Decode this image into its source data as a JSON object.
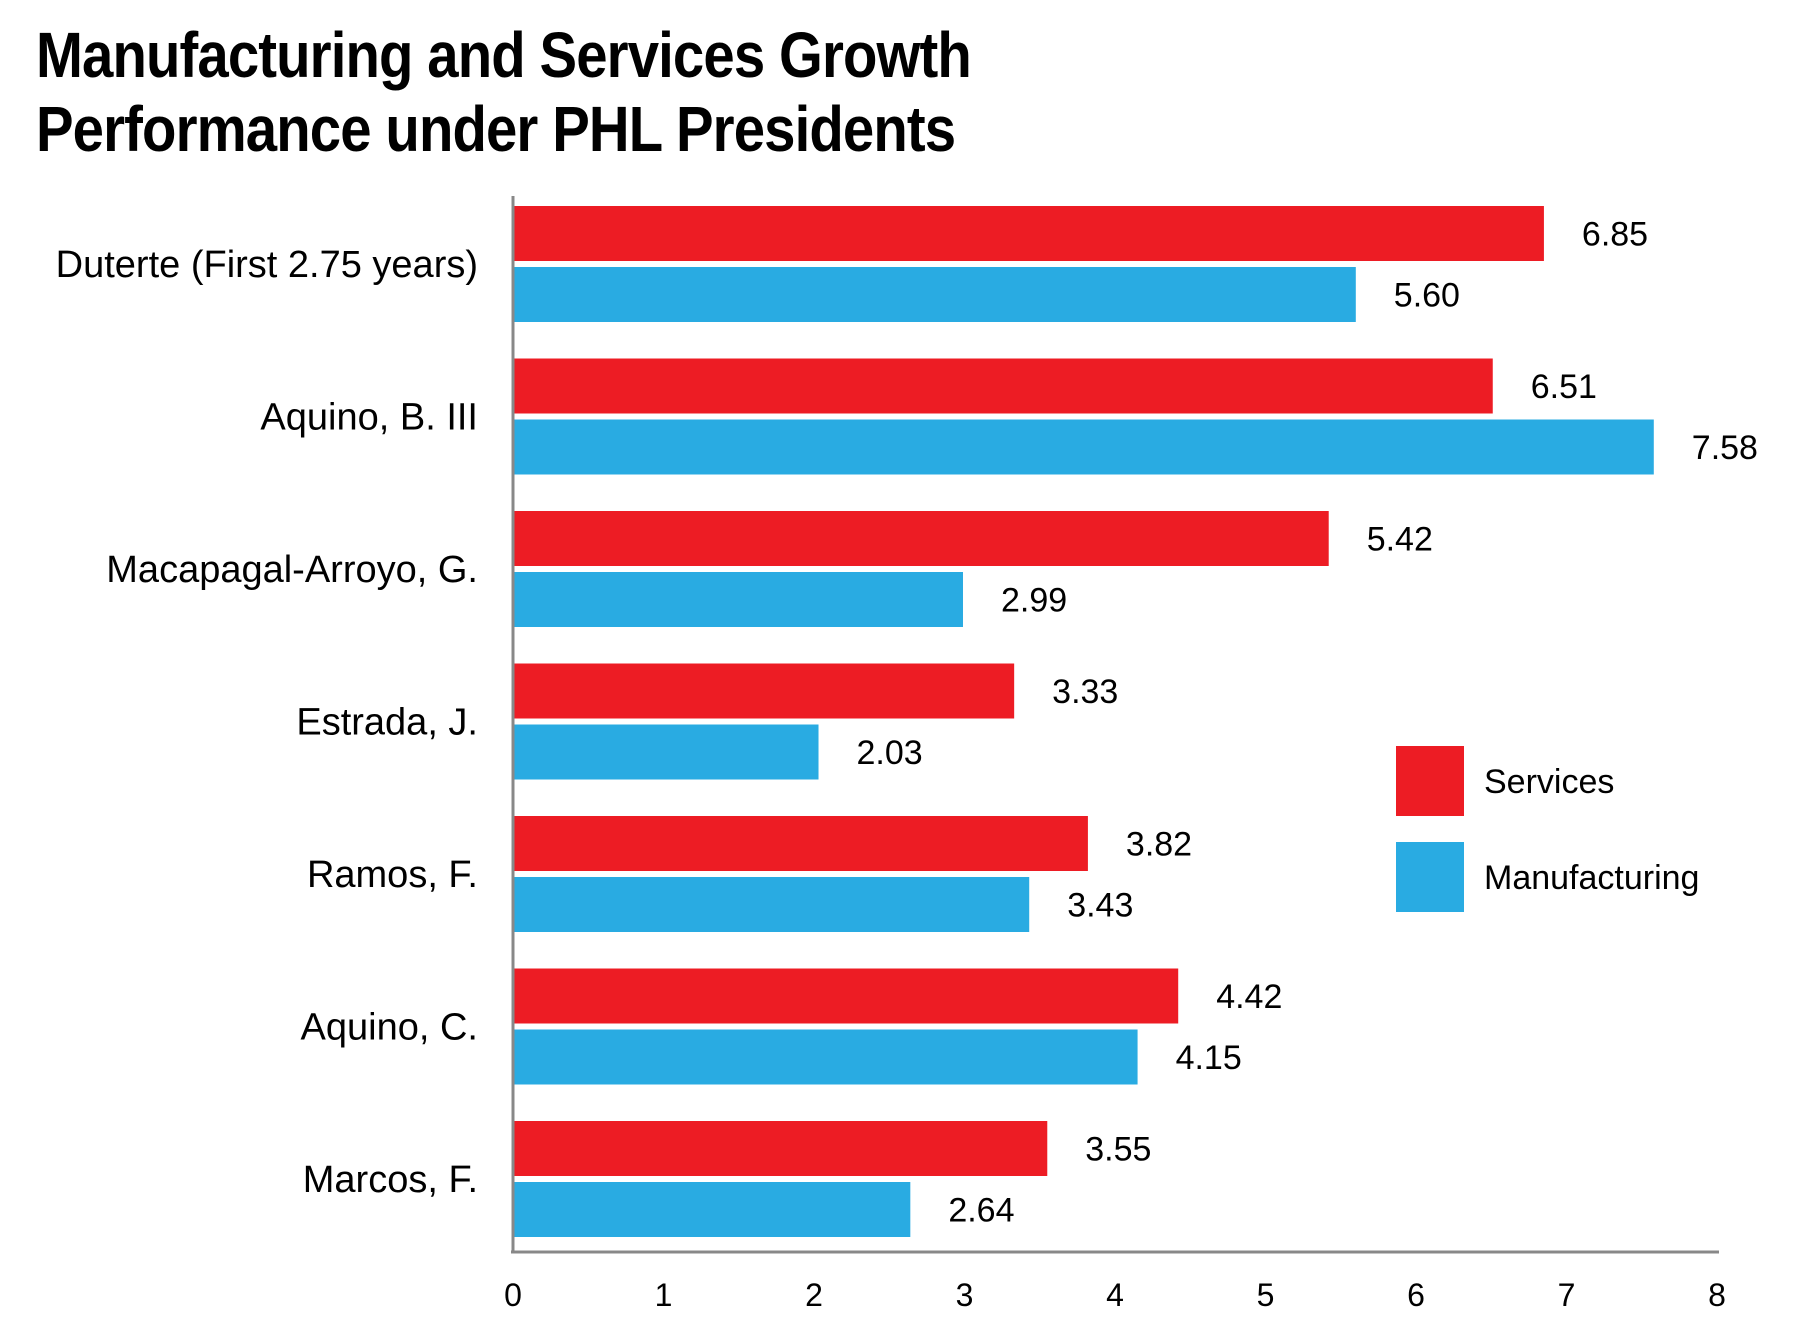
{
  "chart_data": {
    "type": "bar",
    "orientation": "horizontal",
    "title_lines": [
      "Manufacturing and Services Growth",
      "Performance under PHL Presidents"
    ],
    "categories": [
      "Duterte  (First 2.75 years)",
      "Aquino, B. III",
      "Macapagal-Arroyo, G.",
      "Estrada, J.",
      "Ramos, F.",
      "Aquino, C.",
      "Marcos, F."
    ],
    "value_labels": {
      "Services": [
        "6.85",
        "6.51",
        "5.42",
        "3.33",
        "3.82",
        "4.42",
        "3.55"
      ],
      "Manufacturing": [
        "5.60",
        "7.58",
        "2.99",
        "2.03",
        "3.43",
        "4.15",
        "2.64"
      ]
    },
    "series": [
      {
        "name": "Services",
        "color": "#ed1c24",
        "values": [
          6.85,
          6.51,
          5.42,
          3.33,
          3.82,
          4.42,
          3.55
        ]
      },
      {
        "name": "Manufacturing",
        "color": "#29abe2",
        "values": [
          5.6,
          7.58,
          2.99,
          2.03,
          3.43,
          4.15,
          2.64
        ]
      }
    ],
    "xlim": [
      0,
      8
    ],
    "xticks": [
      "0",
      "1",
      "2",
      "3",
      "4",
      "5",
      "6",
      "7",
      "8"
    ],
    "xlabel": "",
    "ylabel": "",
    "grid": false,
    "legend_position": "right"
  }
}
